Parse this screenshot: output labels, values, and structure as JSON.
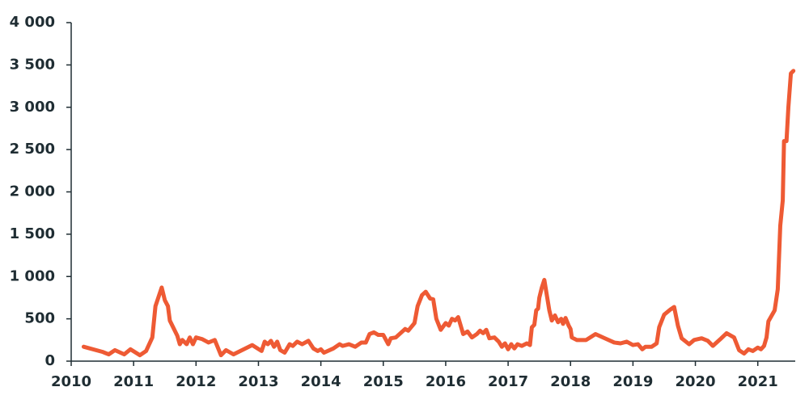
{
  "chart_data": {
    "type": "line",
    "series": [
      {
        "color": "#ee5a34",
        "x": [
          2010.2,
          2010.5,
          2010.6,
          2010.7,
          2010.85,
          2010.95,
          2011.1,
          2011.2,
          2011.3,
          2011.35,
          2011.45,
          2011.5,
          2011.55,
          2011.58,
          2011.7,
          2011.74,
          2011.78,
          2011.85,
          2011.9,
          2011.95,
          2012.0,
          2012.1,
          2012.2,
          2012.3,
          2012.4,
          2012.48,
          2012.6,
          2012.9,
          2013.05,
          2013.1,
          2013.15,
          2013.2,
          2013.25,
          2013.3,
          2013.35,
          2013.42,
          2013.5,
          2013.55,
          2013.62,
          2013.7,
          2013.8,
          2013.88,
          2013.95,
          2014.0,
          2014.05,
          2014.2,
          2014.3,
          2014.35,
          2014.45,
          2014.55,
          2014.65,
          2014.72,
          2014.78,
          2014.85,
          2014.92,
          2015.0,
          2015.08,
          2015.12,
          2015.2,
          2015.35,
          2015.4,
          2015.5,
          2015.55,
          2015.62,
          2015.68,
          2015.75,
          2015.8,
          2015.85,
          2015.92,
          2016.0,
          2016.05,
          2016.1,
          2016.15,
          2016.2,
          2016.28,
          2016.35,
          2016.42,
          2016.5,
          2016.55,
          2016.6,
          2016.65,
          2016.7,
          2016.78,
          2016.85,
          2016.9,
          2016.95,
          2017.0,
          2017.05,
          2017.1,
          2017.15,
          2017.22,
          2017.3,
          2017.35,
          2017.38,
          2017.42,
          2017.45,
          2017.48,
          2017.5,
          2017.54,
          2017.58,
          2017.62,
          2017.66,
          2017.7,
          2017.75,
          2017.8,
          2017.85,
          2017.88,
          2017.92,
          2017.97,
          2018.0,
          2018.02,
          2018.1,
          2018.25,
          2018.4,
          2018.55,
          2018.7,
          2018.8,
          2018.9,
          2019.0,
          2019.08,
          2019.15,
          2019.2,
          2019.3,
          2019.38,
          2019.42,
          2019.5,
          2019.6,
          2019.66,
          2019.72,
          2019.78,
          2019.9,
          2019.98,
          2020.1,
          2020.2,
          2020.28,
          2020.4,
          2020.5,
          2020.62,
          2020.7,
          2020.78,
          2020.85,
          2020.92,
          2021.0,
          2021.05,
          2021.1,
          2021.14,
          2021.17,
          2021.27,
          2021.32,
          2021.36,
          2021.4,
          2021.42,
          2021.46,
          2021.49,
          2021.53,
          2021.57
        ],
        "values": [
          170,
          110,
          80,
          130,
          80,
          140,
          70,
          120,
          280,
          650,
          870,
          720,
          650,
          480,
          300,
          200,
          250,
          200,
          280,
          200,
          280,
          260,
          220,
          250,
          70,
          130,
          80,
          190,
          120,
          230,
          200,
          240,
          170,
          230,
          130,
          100,
          200,
          180,
          230,
          200,
          240,
          150,
          120,
          140,
          100,
          150,
          200,
          180,
          200,
          170,
          220,
          220,
          320,
          340,
          310,
          310,
          200,
          270,
          280,
          380,
          360,
          450,
          650,
          780,
          820,
          740,
          730,
          500,
          370,
          450,
          420,
          500,
          480,
          520,
          320,
          350,
          280,
          320,
          360,
          330,
          370,
          270,
          280,
          230,
          170,
          210,
          140,
          200,
          150,
          200,
          180,
          210,
          190,
          400,
          430,
          600,
          620,
          750,
          870,
          960,
          780,
          600,
          480,
          540,
          460,
          500,
          440,
          510,
          420,
          380,
          280,
          250,
          250,
          320,
          270,
          220,
          210,
          230,
          190,
          200,
          140,
          170,
          170,
          210,
          400,
          550,
          610,
          640,
          420,
          270,
          200,
          250,
          270,
          240,
          180,
          260,
          330,
          280,
          130,
          90,
          140,
          120,
          160,
          140,
          180,
          280,
          470,
          600,
          850,
          1600,
          1900,
          2600,
          2600,
          3000,
          3400,
          3430
        ]
      }
    ],
    "xlim": [
      2010,
      2021.6
    ],
    "xticks": [
      2010,
      2011,
      2012,
      2013,
      2014,
      2015,
      2016,
      2017,
      2018,
      2019,
      2020,
      2021
    ],
    "ylim": [
      0,
      4000
    ],
    "yticks": [
      0,
      500,
      {
        "value": 1000,
        "label": "1 000"
      },
      {
        "value": 1500,
        "label": "1 500"
      },
      {
        "value": 2000,
        "label": "2 000"
      },
      {
        "value": 2500,
        "label": "2 500"
      },
      {
        "value": 3000,
        "label": "3 000"
      },
      {
        "value": 3500,
        "label": "3 500"
      },
      {
        "value": 4000,
        "label": "4 000"
      }
    ]
  }
}
